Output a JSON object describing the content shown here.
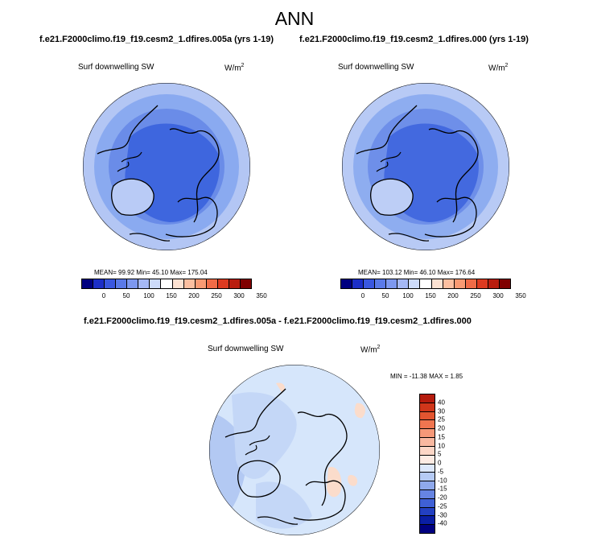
{
  "chart_data": [
    {
      "type": "heatmap",
      "title": "f.e21.F2000climo.f19_f19.cesm2_1.dfires.005a (yrs 1-19)",
      "variable": "Surf downwelling SW",
      "units": "W/m",
      "units_sup": "2",
      "projection": "north-polar-stereographic",
      "stats_text": "MEAN=  99.92  Min=  45.10  Max= 175.04",
      "mean": 99.92,
      "min": 45.1,
      "max": 175.04,
      "colorbar": {
        "ticks": [
          "0",
          "50",
          "100",
          "150",
          "200",
          "250",
          "300",
          "350"
        ],
        "colors": [
          "#000080",
          "#1c2fc8",
          "#3a58e0",
          "#5a7ae8",
          "#7d98ef",
          "#a5b8f5",
          "#cddbfa",
          "#ffffff",
          "#fde2d2",
          "#fcbfa0",
          "#f99a73",
          "#f06b47",
          "#dd3a20",
          "#b81d0e",
          "#800000"
        ]
      }
    },
    {
      "type": "heatmap",
      "title": "f.e21.F2000climo.f19_f19.cesm2_1.dfires.000 (yrs 1-19)",
      "variable": "Surf downwelling SW",
      "units": "W/m",
      "units_sup": "2",
      "projection": "north-polar-stereographic",
      "stats_text": "MEAN= 103.12  Min=  46.10  Max= 176.64",
      "mean": 103.12,
      "min": 46.1,
      "max": 176.64,
      "colorbar": {
        "ticks": [
          "0",
          "50",
          "100",
          "150",
          "200",
          "250",
          "300",
          "350"
        ],
        "colors": [
          "#000080",
          "#1c2fc8",
          "#3a58e0",
          "#5a7ae8",
          "#7d98ef",
          "#a5b8f5",
          "#cddbfa",
          "#ffffff",
          "#fde2d2",
          "#fcbfa0",
          "#f99a73",
          "#f06b47",
          "#dd3a20",
          "#b81d0e",
          "#800000"
        ]
      }
    },
    {
      "type": "heatmap",
      "title": "f.e21.F2000climo.f19_f19.cesm2_1.dfires.005a - f.e21.F2000climo.f19_f19.cesm2_1.dfires.000",
      "variable": "Surf downwelling SW",
      "units": "W/m",
      "units_sup": "2",
      "projection": "north-polar-stereographic",
      "stats_text": "MIN = -11.38  MAX =   1.85",
      "min": -11.38,
      "max": 1.85,
      "colorbar": {
        "ticks": [
          "40",
          "30",
          "25",
          "20",
          "15",
          "10",
          "5",
          "0",
          "-5",
          "-10",
          "-15",
          "-20",
          "-25",
          "-30",
          "-40"
        ],
        "colors": [
          "#b51b0d",
          "#d0361a",
          "#e35530",
          "#ef7550",
          "#f59878",
          "#f9b8a0",
          "#fcd6c6",
          "#fdebe3",
          "#dde8fb",
          "#b6cbf5",
          "#8fa9ec",
          "#6684e2",
          "#3f60d6",
          "#2340c2",
          "#0a1ea4",
          "#000080"
        ]
      }
    }
  ],
  "page": {
    "main_title": "ANN"
  },
  "palette": {
    "field_light": "#8aaaf0",
    "field_mid": "#6a8ce8",
    "field_dark": "#3e66de",
    "diff_base": "#d6e6fb",
    "diff_cool": "#b3c9f3",
    "diff_warm": "#fbdccb"
  }
}
